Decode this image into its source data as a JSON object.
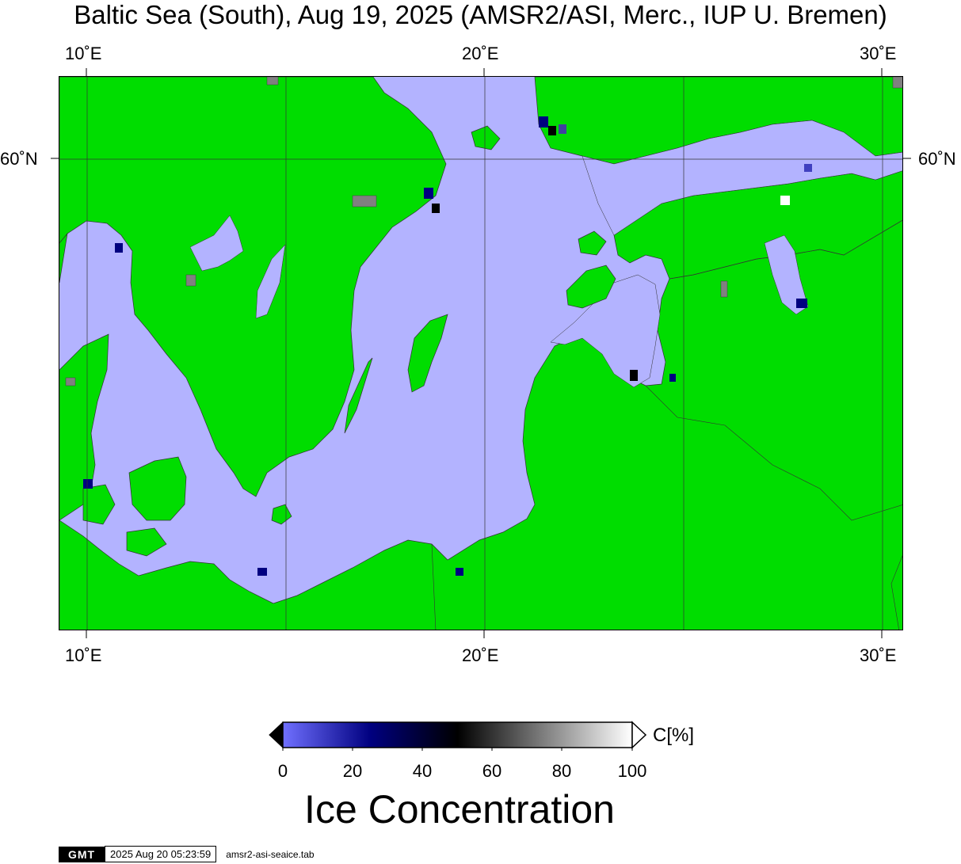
{
  "title": "Baltic Sea (South), Aug 19, 2025 (AMSR2/ASI, Merc., IUP U. Bremen)",
  "axes": {
    "top_ticks": [
      "10˚E",
      "20˚E",
      "30˚E"
    ],
    "bottom_ticks": [
      "10˚E",
      "20˚E",
      "30˚E"
    ],
    "left_ticks": [
      "60˚N"
    ],
    "right_ticks": [
      "60˚N"
    ],
    "lon_range": [
      9.3,
      30.5
    ],
    "lat_range": [
      53.6,
      61.0
    ],
    "graticule_lons": [
      10,
      15,
      20,
      25,
      30
    ],
    "graticule_lats": [
      60
    ]
  },
  "colors": {
    "land": "#00dd00",
    "open_water": "#b3b3ff",
    "no_data": "#808080",
    "coastline": "#333333"
  },
  "colorbar": {
    "unit": "C[%]",
    "ticks": [
      "0",
      "20",
      "40",
      "60",
      "80",
      "100"
    ],
    "range": [
      0,
      100
    ],
    "stops": [
      "#7070ff",
      "#000080",
      "#000000",
      "#808080",
      "#ffffff"
    ],
    "title": "Ice Concentration"
  },
  "footer": {
    "logo": "GMT",
    "timestamp": "2025 Aug 20 05:23:59",
    "filename": "amsr2-asi-seaice.tab"
  }
}
